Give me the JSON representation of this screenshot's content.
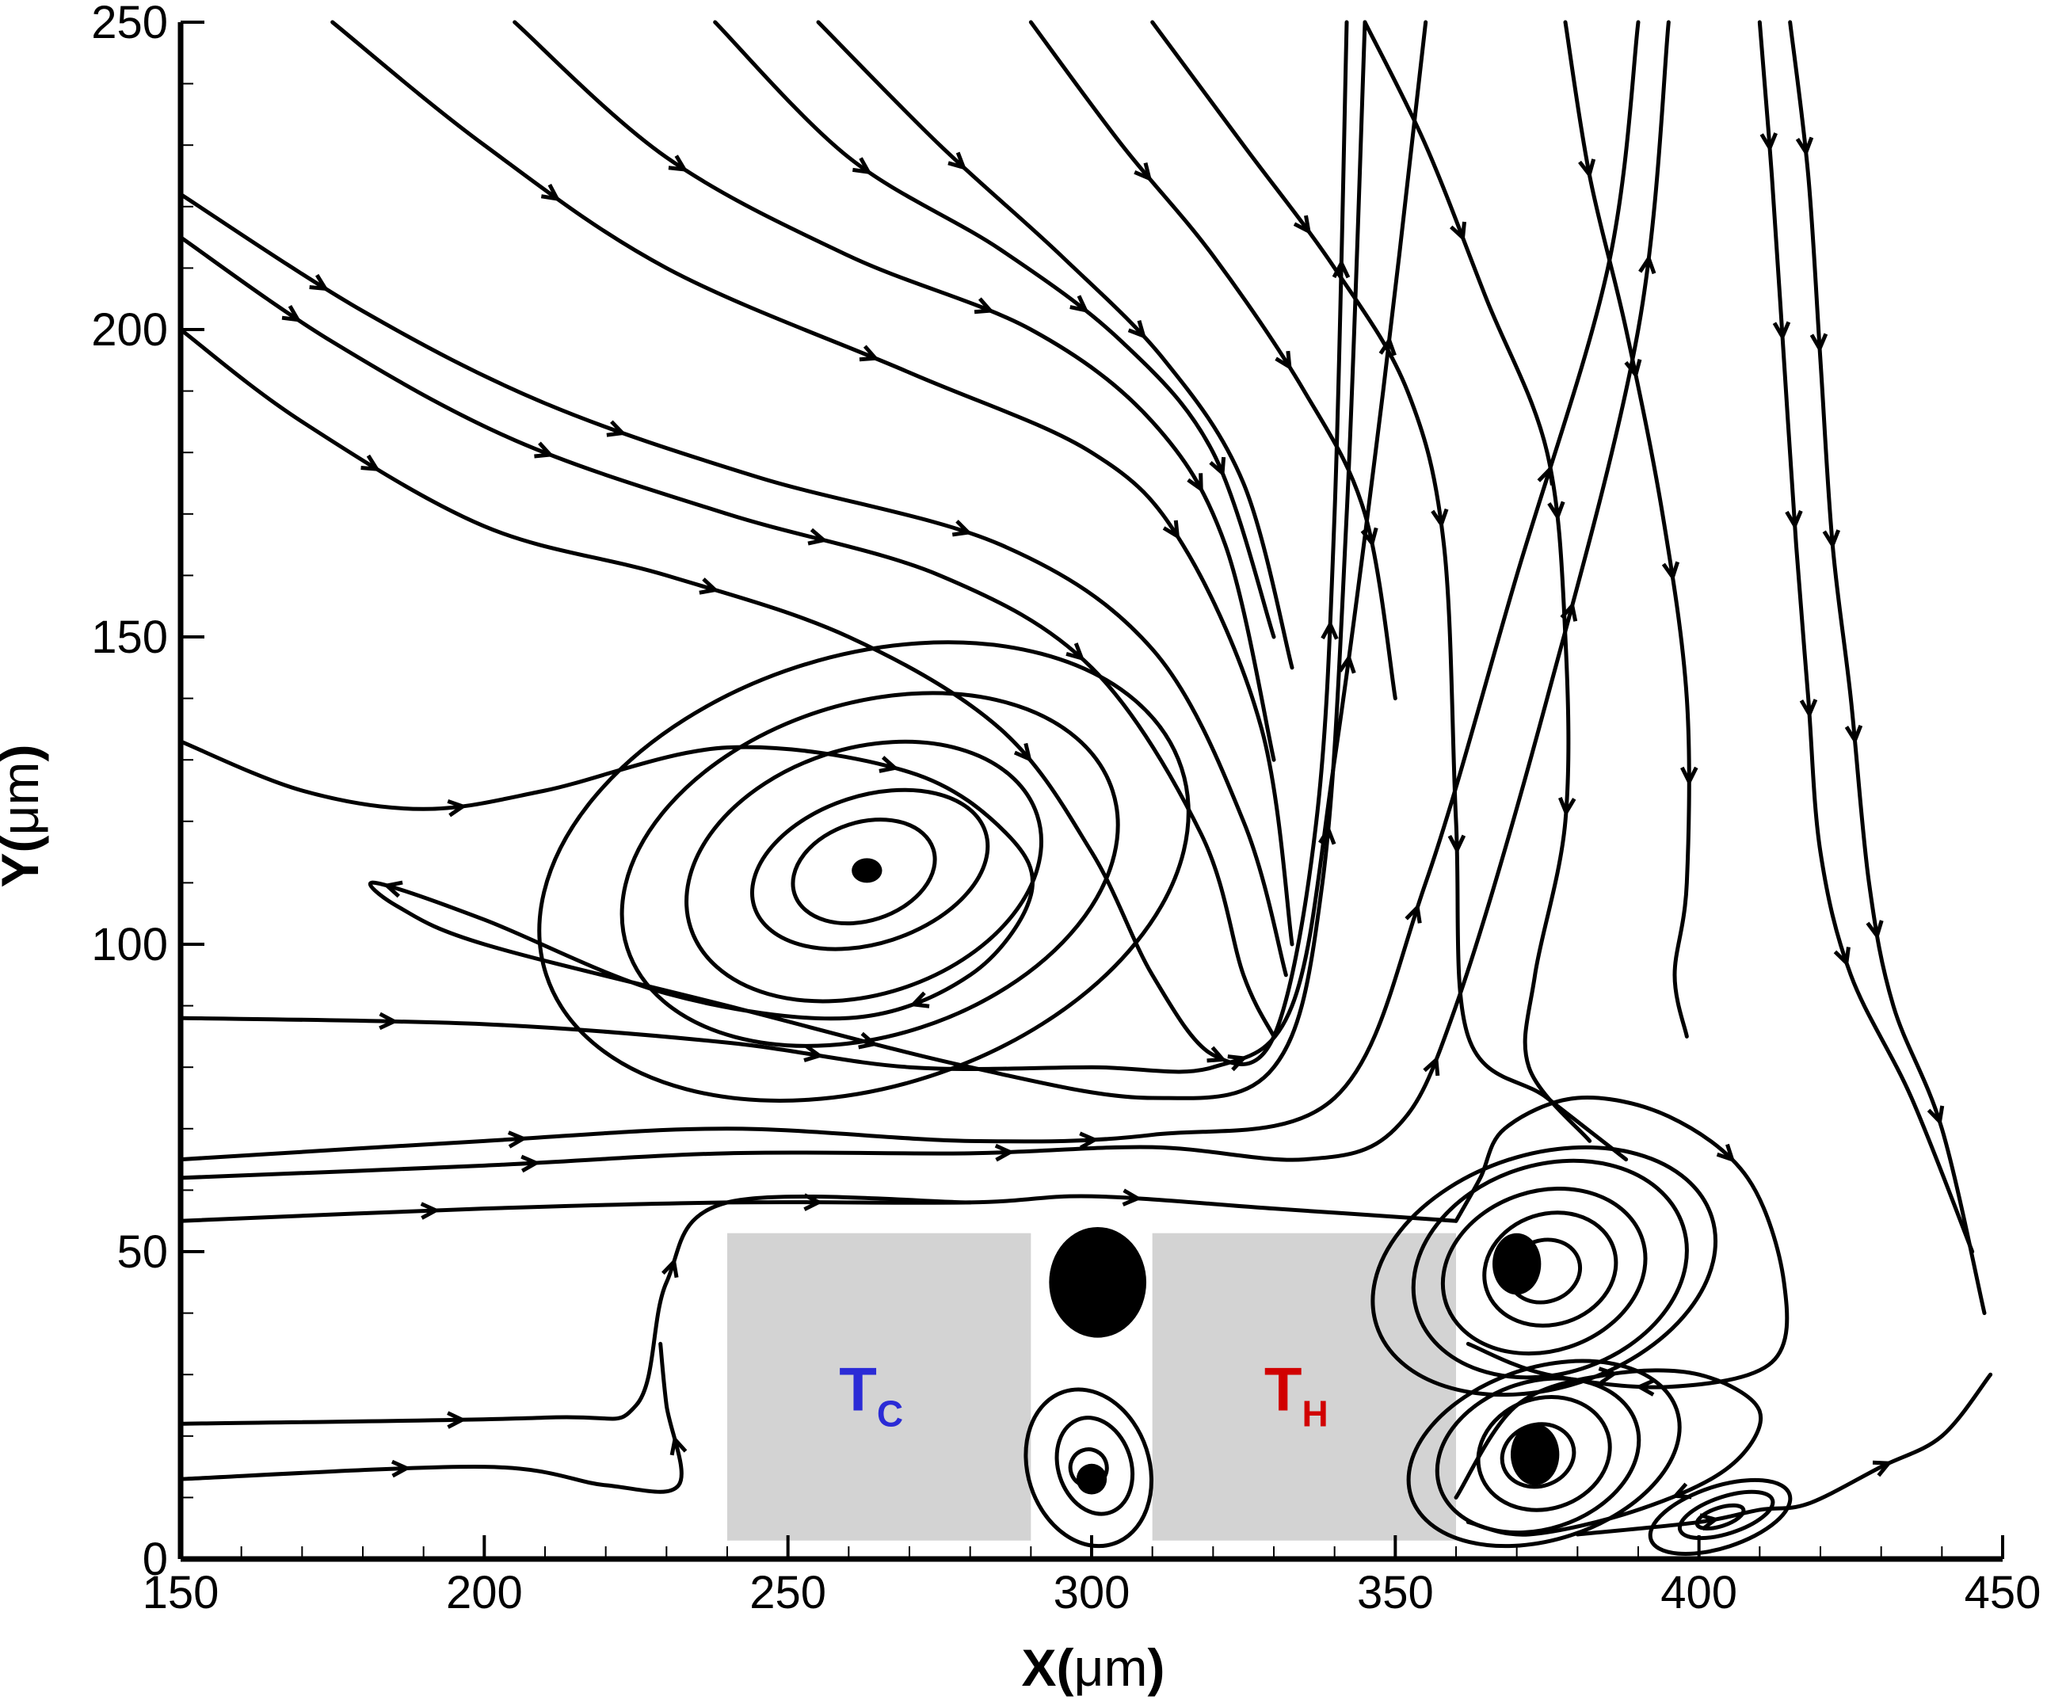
{
  "chart_data": {
    "type": "streamline",
    "xlabel_main": "X(",
    "xlabel_unit": "μm",
    "xlabel_close": ")",
    "ylabel_main": "Y(",
    "ylabel_unit": "μm",
    "ylabel_close": ")",
    "xlim": [
      150,
      450
    ],
    "ylim": [
      0,
      250
    ],
    "x_major_ticks": [
      150,
      200,
      250,
      300,
      350,
      400,
      450
    ],
    "x_tick_labels": [
      "150",
      "200",
      "250",
      "300",
      "350",
      "400",
      "450"
    ],
    "y_major_ticks": [
      0,
      50,
      100,
      150,
      200,
      250
    ],
    "y_tick_labels": [
      "0",
      "50",
      "100",
      "150",
      "200",
      "250"
    ],
    "minor_x_step": 10,
    "minor_y_step": 10,
    "grid": false,
    "blocks": [
      {
        "label": "T",
        "sub": "C",
        "color": "#2b2bd6",
        "x": [
          240,
          290
        ],
        "y": [
          3,
          53
        ]
      },
      {
        "label": "T",
        "sub": "H",
        "color": "#d10000",
        "x": [
          310,
          360
        ],
        "y": [
          3,
          53
        ]
      }
    ],
    "block_fill": "#d3d3d3",
    "streamlines": [
      {
        "points": [
          [
            150,
            55
          ],
          [
            200,
            57
          ],
          [
            240,
            58
          ],
          [
            280,
            58
          ],
          [
            300,
            59
          ],
          [
            330,
            57
          ],
          [
            360,
            55
          ]
        ],
        "arrows": [
          0.2,
          0.5,
          0.75
        ]
      },
      {
        "points": [
          [
            150,
            62
          ],
          [
            200,
            64
          ],
          [
            240,
            66
          ],
          [
            280,
            66
          ],
          [
            310,
            67
          ],
          [
            335,
            65
          ],
          [
            350,
            70
          ],
          [
            360,
            90
          ],
          [
            375,
            140
          ],
          [
            390,
            200
          ],
          [
            395,
            250
          ]
        ],
        "arrows": [
          0.15,
          0.35,
          0.55,
          0.75,
          0.9
        ]
      },
      {
        "points": [
          [
            150,
            65
          ],
          [
            200,
            68
          ],
          [
            240,
            70
          ],
          [
            280,
            68
          ],
          [
            310,
            69
          ],
          [
            340,
            75
          ],
          [
            355,
            110
          ],
          [
            370,
            160
          ],
          [
            385,
            210
          ],
          [
            390,
            250
          ]
        ],
        "arrows": [
          0.15,
          0.4,
          0.6,
          0.8
        ]
      },
      {
        "points": [
          [
            150,
            22
          ],
          [
            210,
            23
          ],
          [
            225,
            25
          ],
          [
            230,
            45
          ],
          [
            240,
            58
          ],
          [
            280,
            58
          ]
        ],
        "arrows": [
          0.3,
          0.65
        ]
      },
      {
        "points": [
          [
            150,
            13
          ],
          [
            200,
            15
          ],
          [
            220,
            12
          ],
          [
            232,
            12
          ],
          [
            230,
            25
          ],
          [
            229,
            35
          ]
        ],
        "arrows": [
          0.35,
          0.85
        ]
      },
      {
        "points": [
          [
            150,
            88
          ],
          [
            200,
            87
          ],
          [
            240,
            84
          ],
          [
            270,
            80
          ],
          [
            300,
            80
          ],
          [
            320,
            80
          ],
          [
            333,
            90
          ],
          [
            340,
            130
          ],
          [
            348,
            190
          ],
          [
            355,
            250
          ]
        ],
        "arrows": [
          0.1,
          0.3,
          0.5,
          0.7,
          0.85
        ]
      },
      {
        "points": [
          [
            150,
            133
          ],
          [
            170,
            125
          ],
          [
            190,
            122
          ],
          [
            210,
            125
          ],
          [
            240,
            132
          ],
          [
            270,
            128
          ],
          [
            286,
            118
          ],
          [
            290,
            108
          ],
          [
            280,
            95
          ],
          [
            260,
            88
          ],
          [
            230,
            92
          ],
          [
            200,
            104
          ],
          [
            182,
            110
          ],
          [
            186,
            106
          ],
          [
            200,
            100
          ],
          [
            240,
            90
          ],
          [
            280,
            80
          ],
          [
            310,
            75
          ],
          [
            330,
            80
          ],
          [
            338,
            110
          ],
          [
            342,
            170
          ],
          [
            345,
            250
          ]
        ],
        "arrows": [
          0.08,
          0.2,
          0.3,
          0.45,
          0.6,
          0.78
        ]
      },
      {
        "points": [
          [
            150,
            200
          ],
          [
            170,
            185
          ],
          [
            200,
            168
          ],
          [
            230,
            160
          ],
          [
            260,
            150
          ],
          [
            285,
            135
          ],
          [
            300,
            115
          ],
          [
            310,
            95
          ],
          [
            320,
            82
          ],
          [
            330,
            85
          ],
          [
            337,
            120
          ],
          [
            340,
            170
          ],
          [
            342,
            250
          ]
        ],
        "arrows": [
          0.1,
          0.25,
          0.4,
          0.55,
          0.75,
          0.9
        ]
      },
      {
        "points": [
          [
            150,
            215
          ],
          [
            175,
            198
          ],
          [
            205,
            182
          ],
          [
            240,
            170
          ],
          [
            275,
            160
          ],
          [
            300,
            145
          ],
          [
            318,
            118
          ],
          [
            325,
            95
          ],
          [
            330,
            85
          ]
        ],
        "arrows": [
          0.1,
          0.3,
          0.5,
          0.7
        ]
      },
      {
        "points": [
          [
            150,
            222
          ],
          [
            180,
            203
          ],
          [
            210,
            188
          ],
          [
            245,
            176
          ],
          [
            285,
            165
          ],
          [
            310,
            148
          ],
          [
            325,
            120
          ],
          [
            332,
            95
          ]
        ],
        "arrows": [
          0.12,
          0.35,
          0.6
        ]
      },
      {
        "points": [
          [
            175,
            250
          ],
          [
            200,
            230
          ],
          [
            230,
            210
          ],
          [
            270,
            193
          ],
          [
            300,
            180
          ],
          [
            315,
            165
          ],
          [
            328,
            135
          ],
          [
            333,
            100
          ]
        ],
        "arrows": [
          0.2,
          0.45,
          0.7
        ]
      },
      {
        "points": [
          [
            205,
            250
          ],
          [
            230,
            228
          ],
          [
            260,
            212
          ],
          [
            290,
            200
          ],
          [
            310,
            185
          ],
          [
            322,
            165
          ],
          [
            330,
            130
          ]
        ],
        "arrows": [
          0.2,
          0.5,
          0.75
        ]
      },
      {
        "points": [
          [
            238,
            250
          ],
          [
            260,
            228
          ],
          [
            285,
            213
          ],
          [
            305,
            198
          ],
          [
            320,
            180
          ],
          [
            330,
            150
          ]
        ],
        "arrows": [
          0.25,
          0.55,
          0.8
        ]
      },
      {
        "points": [
          [
            255,
            250
          ],
          [
            275,
            230
          ],
          [
            295,
            212
          ],
          [
            312,
            195
          ],
          [
            325,
            175
          ],
          [
            333,
            145
          ]
        ],
        "arrows": [
          0.25,
          0.55
        ]
      },
      {
        "points": [
          [
            290,
            250
          ],
          [
            305,
            230
          ],
          [
            320,
            212
          ],
          [
            335,
            190
          ],
          [
            345,
            170
          ],
          [
            350,
            140
          ]
        ],
        "arrows": [
          0.25,
          0.55,
          0.8
        ]
      },
      {
        "points": [
          [
            310,
            250
          ],
          [
            325,
            230
          ],
          [
            340,
            210
          ],
          [
            352,
            190
          ],
          [
            358,
            165
          ],
          [
            360,
            120
          ],
          [
            362,
            85
          ],
          [
            375,
            75
          ],
          [
            388,
            65
          ]
        ],
        "arrows": [
          0.2,
          0.45,
          0.7
        ]
      },
      {
        "points": [
          [
            345,
            250
          ],
          [
            355,
            230
          ],
          [
            365,
            205
          ],
          [
            375,
            180
          ],
          [
            378,
            150
          ],
          [
            378,
            120
          ],
          [
            373,
            95
          ],
          [
            372,
            80
          ],
          [
            382,
            68
          ]
        ],
        "arrows": [
          0.2,
          0.45,
          0.7
        ]
      },
      {
        "points": [
          [
            378,
            250
          ],
          [
            382,
            225
          ],
          [
            388,
            200
          ],
          [
            394,
            170
          ],
          [
            398,
            140
          ],
          [
            398,
            110
          ],
          [
            396,
            95
          ],
          [
            398,
            85
          ]
        ],
        "arrows": [
          0.15,
          0.35,
          0.55,
          0.75
        ]
      },
      {
        "points": [
          [
            415,
            250
          ],
          [
            418,
            225
          ],
          [
            420,
            195
          ],
          [
            422,
            165
          ],
          [
            425,
            140
          ],
          [
            428,
            110
          ],
          [
            432,
            90
          ],
          [
            440,
            70
          ],
          [
            447,
            40
          ]
        ],
        "arrows": [
          0.1,
          0.25,
          0.4,
          0.55,
          0.7,
          0.85
        ]
      },
      {
        "points": [
          [
            410,
            250
          ],
          [
            412,
            225
          ],
          [
            414,
            195
          ],
          [
            416,
            165
          ],
          [
            418,
            140
          ],
          [
            420,
            115
          ],
          [
            425,
            95
          ],
          [
            435,
            75
          ],
          [
            445,
            50
          ]
        ],
        "arrows": [
          0.1,
          0.25,
          0.4,
          0.55,
          0.75
        ]
      },
      {
        "points": [
          [
            360,
            55
          ],
          [
            364,
            62
          ],
          [
            368,
            70
          ],
          [
            380,
            75
          ],
          [
            395,
            72
          ],
          [
            408,
            62
          ],
          [
            414,
            45
          ],
          [
            412,
            32
          ],
          [
            395,
            28
          ],
          [
            375,
            30
          ],
          [
            362,
            35
          ]
        ],
        "arrows": [
          0.4,
          0.8
        ]
      },
      {
        "points": [
          [
            360,
            10
          ],
          [
            370,
            25
          ],
          [
            385,
            30
          ],
          [
            400,
            30
          ],
          [
            410,
            24
          ],
          [
            405,
            15
          ],
          [
            390,
            8
          ],
          [
            372,
            4
          ],
          [
            362,
            6
          ]
        ],
        "arrows": [
          0.3,
          0.7
        ]
      },
      {
        "points": [
          [
            380,
            4
          ],
          [
            400,
            6
          ],
          [
            410,
            8
          ],
          [
            418,
            9
          ],
          [
            430,
            15
          ],
          [
            440,
            20
          ],
          [
            448,
            30
          ]
        ],
        "arrows": [
          0.3,
          0.7
        ]
      }
    ],
    "vortices": [
      {
        "center": [
          263,
          112
        ],
        "rings": [
          [
            12,
            8
          ],
          [
            20,
            12
          ],
          [
            30,
            20
          ],
          [
            42,
            27
          ],
          [
            55,
            35
          ]
        ]
      },
      {
        "center": [
          375,
          47
        ],
        "rings": [
          [
            6,
            5
          ],
          [
            11,
            9
          ],
          [
            17,
            13
          ],
          [
            23,
            17
          ],
          [
            29,
            19
          ]
        ]
      },
      {
        "center": [
          374,
          17
        ],
        "rings": [
          [
            6,
            5
          ],
          [
            11,
            9
          ],
          [
            17,
            12
          ],
          [
            23,
            14
          ]
        ]
      },
      {
        "center": [
          300,
          15
        ],
        "rings": [
          [
            3,
            3
          ],
          [
            6,
            8
          ],
          [
            10,
            13
          ]
        ]
      },
      {
        "center": [
          404,
          7
        ],
        "rings": [
          [
            4,
            1.5
          ],
          [
            8,
            3
          ],
          [
            12,
            5
          ]
        ]
      }
    ],
    "blobs": [
      {
        "center": [
          301,
          45
        ],
        "rx": 8,
        "ry": 9
      },
      {
        "center": [
          370,
          48
        ],
        "rx": 4,
        "ry": 5
      },
      {
        "center": [
          373,
          17
        ],
        "rx": 4,
        "ry": 5
      },
      {
        "center": [
          300,
          13
        ],
        "rx": 2.5,
        "ry": 2.5
      },
      {
        "center": [
          263,
          112
        ],
        "rx": 2.5,
        "ry": 2
      }
    ]
  }
}
